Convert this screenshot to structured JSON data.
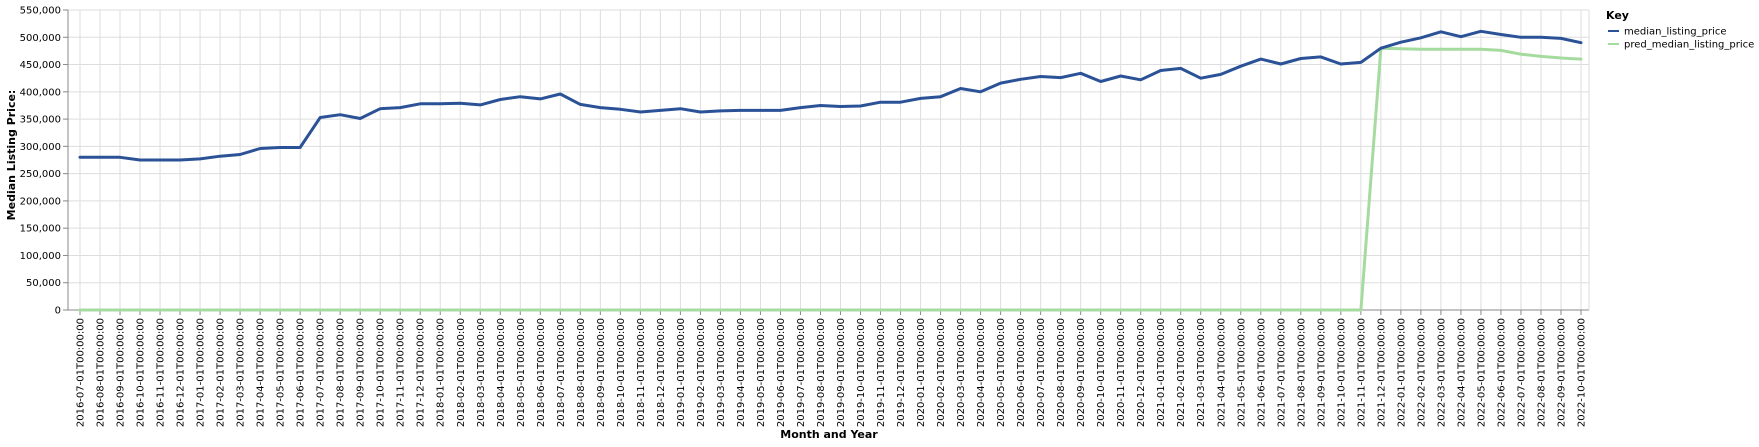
{
  "chart_data": {
    "type": "line",
    "xlabel": "Month and Year",
    "ylabel": "Median Listing Price:",
    "ylim": [
      0,
      550000
    ],
    "yticks": [
      "0",
      "50,000",
      "100,000",
      "150,000",
      "200,000",
      "250,000",
      "300,000",
      "350,000",
      "400,000",
      "450,000",
      "500,000",
      "550,000"
    ],
    "grid": true,
    "legend": {
      "title": "Key",
      "position": "top-right"
    },
    "categories": [
      "2016-07-01T00:00:00",
      "2016-08-01T00:00:00",
      "2016-09-01T00:00:00",
      "2016-10-01T00:00:00",
      "2016-11-01T00:00:00",
      "2016-12-01T00:00:00",
      "2017-01-01T00:00:00",
      "2017-02-01T00:00:00",
      "2017-03-01T00:00:00",
      "2017-04-01T00:00:00",
      "2017-05-01T00:00:00",
      "2017-06-01T00:00:00",
      "2017-07-01T00:00:00",
      "2017-08-01T00:00:00",
      "2017-09-01T00:00:00",
      "2017-10-01T00:00:00",
      "2017-11-01T00:00:00",
      "2017-12-01T00:00:00",
      "2018-01-01T00:00:00",
      "2018-02-01T00:00:00",
      "2018-03-01T00:00:00",
      "2018-04-01T00:00:00",
      "2018-05-01T00:00:00",
      "2018-06-01T00:00:00",
      "2018-07-01T00:00:00",
      "2018-08-01T00:00:00",
      "2018-09-01T00:00:00",
      "2018-10-01T00:00:00",
      "2018-11-01T00:00:00",
      "2018-12-01T00:00:00",
      "2019-01-01T00:00:00",
      "2019-02-01T00:00:00",
      "2019-03-01T00:00:00",
      "2019-04-01T00:00:00",
      "2019-05-01T00:00:00",
      "2019-06-01T00:00:00",
      "2019-07-01T00:00:00",
      "2019-08-01T00:00:00",
      "2019-09-01T00:00:00",
      "2019-10-01T00:00:00",
      "2019-11-01T00:00:00",
      "2019-12-01T00:00:00",
      "2020-01-01T00:00:00",
      "2020-02-01T00:00:00",
      "2020-03-01T00:00:00",
      "2020-04-01T00:00:00",
      "2020-05-01T00:00:00",
      "2020-06-01T00:00:00",
      "2020-07-01T00:00:00",
      "2020-08-01T00:00:00",
      "2020-09-01T00:00:00",
      "2020-10-01T00:00:00",
      "2020-11-01T00:00:00",
      "2020-12-01T00:00:00",
      "2021-01-01T00:00:00",
      "2021-02-01T00:00:00",
      "2021-03-01T00:00:00",
      "2021-04-01T00:00:00",
      "2021-05-01T00:00:00",
      "2021-06-01T00:00:00",
      "2021-07-01T00:00:00",
      "2021-08-01T00:00:00",
      "2021-09-01T00:00:00",
      "2021-10-01T00:00:00",
      "2021-11-01T00:00:00",
      "2021-12-01T00:00:00",
      "2022-01-01T00:00:00",
      "2022-02-01T00:00:00",
      "2022-03-01T00:00:00",
      "2022-04-01T00:00:00",
      "2022-05-01T00:00:00",
      "2022-06-01T00:00:00",
      "2022-07-01T00:00:00",
      "2022-08-01T00:00:00",
      "2022-09-01T00:00:00",
      "2022-10-01T00:00:00"
    ],
    "series": [
      {
        "name": "median_listing_price",
        "color": "#2b5297",
        "values": [
          280000,
          280000,
          280000,
          275000,
          275000,
          275000,
          277000,
          282000,
          285000,
          296000,
          298000,
          298000,
          353000,
          358000,
          351000,
          369000,
          371000,
          378000,
          378000,
          379000,
          376000,
          386000,
          391000,
          387000,
          396000,
          377000,
          371000,
          368000,
          363000,
          366000,
          369000,
          363000,
          365000,
          366000,
          366000,
          366000,
          371000,
          375000,
          373000,
          374000,
          381000,
          381000,
          388000,
          391000,
          406000,
          400000,
          416000,
          423000,
          428000,
          426000,
          434000,
          419000,
          429000,
          422000,
          439000,
          443000,
          425000,
          432000,
          447000,
          460000,
          451000,
          461000,
          464000,
          451000,
          454000,
          480000,
          491000,
          499000,
          510000,
          501000,
          511000,
          505000,
          500000,
          500000,
          498000,
          490000
        ]
      },
      {
        "name": "pred_median_listing_price",
        "color": "#a6dba0",
        "values": [
          0,
          0,
          0,
          0,
          0,
          0,
          0,
          0,
          0,
          0,
          0,
          0,
          0,
          0,
          0,
          0,
          0,
          0,
          0,
          0,
          0,
          0,
          0,
          0,
          0,
          0,
          0,
          0,
          0,
          0,
          0,
          0,
          0,
          0,
          0,
          0,
          0,
          0,
          0,
          0,
          0,
          0,
          0,
          0,
          0,
          0,
          0,
          0,
          0,
          0,
          0,
          0,
          0,
          0,
          0,
          0,
          0,
          0,
          0,
          0,
          0,
          0,
          0,
          0,
          0,
          480000,
          479000,
          478000,
          478000,
          478000,
          478000,
          476000,
          469000,
          465000,
          462000,
          460000
        ]
      }
    ]
  }
}
